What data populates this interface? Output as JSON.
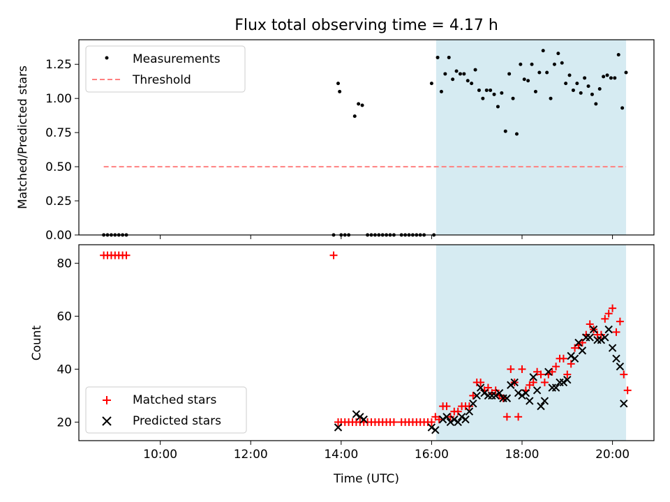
{
  "figure": {
    "title": "Flux total observing time = 4.17 h"
  },
  "chart_data": [
    {
      "type": "scatter",
      "panel": "top",
      "title": "Flux total observing time = 4.17 h",
      "xlabel": "",
      "ylabel": "Matched/Predicted stars",
      "xlim": [
        "08:12",
        "20:55"
      ],
      "ylim": [
        0,
        1.43
      ],
      "yticks": [
        0.0,
        0.25,
        0.5,
        0.75,
        1.0,
        1.25
      ],
      "ytick_labels": [
        "0.00",
        "0.25",
        "0.50",
        "0.75",
        "1.00",
        "1.25"
      ],
      "legend_position": "top-left",
      "shaded_interval": {
        "start": "16:06",
        "end": "20:18",
        "color": "#add8e6"
      },
      "series": [
        {
          "name": "Measurements",
          "marker": "dot",
          "color": "#000000",
          "points": [
            [
              "08:45",
              0
            ],
            [
              "08:50",
              0
            ],
            [
              "08:55",
              0
            ],
            [
              "09:00",
              0
            ],
            [
              "09:05",
              0
            ],
            [
              "09:10",
              0
            ],
            [
              "09:15",
              0
            ],
            [
              "13:50",
              0
            ],
            [
              "13:56",
              1.11
            ],
            [
              "13:58",
              1.05
            ],
            [
              "14:00",
              0
            ],
            [
              "14:05",
              0
            ],
            [
              "14:10",
              0
            ],
            [
              "14:18",
              0.87
            ],
            [
              "14:23",
              0.96
            ],
            [
              "14:28",
              0.95
            ],
            [
              "14:35",
              0
            ],
            [
              "14:40",
              0
            ],
            [
              "14:45",
              0
            ],
            [
              "14:50",
              0
            ],
            [
              "14:55",
              0
            ],
            [
              "15:00",
              0
            ],
            [
              "15:05",
              0
            ],
            [
              "15:10",
              0
            ],
            [
              "15:20",
              0
            ],
            [
              "15:25",
              0
            ],
            [
              "15:30",
              0
            ],
            [
              "15:35",
              0
            ],
            [
              "15:40",
              0
            ],
            [
              "15:45",
              0
            ],
            [
              "15:50",
              0
            ],
            [
              "16:00",
              1.11
            ],
            [
              "16:03",
              0
            ],
            [
              "16:08",
              1.3
            ],
            [
              "16:13",
              1.05
            ],
            [
              "16:18",
              1.18
            ],
            [
              "16:23",
              1.3
            ],
            [
              "16:28",
              1.14
            ],
            [
              "16:33",
              1.2
            ],
            [
              "16:38",
              1.18
            ],
            [
              "16:43",
              1.18
            ],
            [
              "16:48",
              1.13
            ],
            [
              "16:53",
              1.11
            ],
            [
              "16:58",
              1.21
            ],
            [
              "17:03",
              1.06
            ],
            [
              "17:08",
              1.0
            ],
            [
              "17:13",
              1.06
            ],
            [
              "17:18",
              1.06
            ],
            [
              "17:23",
              1.03
            ],
            [
              "17:28",
              0.94
            ],
            [
              "17:33",
              1.04
            ],
            [
              "17:38",
              0.76
            ],
            [
              "17:43",
              1.18
            ],
            [
              "17:48",
              1.0
            ],
            [
              "17:53",
              0.74
            ],
            [
              "17:58",
              1.25
            ],
            [
              "18:03",
              1.14
            ],
            [
              "18:08",
              1.13
            ],
            [
              "18:13",
              1.25
            ],
            [
              "18:18",
              1.05
            ],
            [
              "18:23",
              1.19
            ],
            [
              "18:28",
              1.35
            ],
            [
              "18:33",
              1.19
            ],
            [
              "18:38",
              1.0
            ],
            [
              "18:43",
              1.25
            ],
            [
              "18:48",
              1.33
            ],
            [
              "18:53",
              1.26
            ],
            [
              "18:58",
              1.11
            ],
            [
              "19:03",
              1.17
            ],
            [
              "19:08",
              1.06
            ],
            [
              "19:13",
              1.11
            ],
            [
              "19:18",
              1.04
            ],
            [
              "19:23",
              1.15
            ],
            [
              "19:28",
              1.09
            ],
            [
              "19:33",
              1.03
            ],
            [
              "19:38",
              0.96
            ],
            [
              "19:43",
              1.07
            ],
            [
              "19:48",
              1.16
            ],
            [
              "19:53",
              1.17
            ],
            [
              "19:58",
              1.15
            ],
            [
              "20:03",
              1.15
            ],
            [
              "20:08",
              1.32
            ],
            [
              "20:13",
              0.93
            ],
            [
              "20:18",
              1.19
            ]
          ]
        },
        {
          "name": "Threshold",
          "marker": "dashed-line",
          "color": "#ff8080",
          "points": [
            [
              "08:45",
              0.5
            ],
            [
              "20:18",
              0.5
            ]
          ]
        }
      ]
    },
    {
      "type": "scatter",
      "panel": "bottom",
      "xlabel": "Time (UTC)",
      "ylabel": "Count",
      "xlim": [
        "08:12",
        "20:55"
      ],
      "ylim": [
        13,
        87
      ],
      "xticks": [
        "10:00",
        "12:00",
        "14:00",
        "16:00",
        "18:00",
        "20:00"
      ],
      "yticks": [
        20,
        40,
        60,
        80
      ],
      "ytick_labels": [
        "20",
        "40",
        "60",
        "80"
      ],
      "legend_position": "bottom-left",
      "shaded_interval": {
        "start": "16:06",
        "end": "20:18",
        "color": "#add8e6"
      },
      "series": [
        {
          "name": "Matched stars",
          "marker": "plus",
          "color": "#ff0000",
          "points": [
            [
              "08:45",
              83
            ],
            [
              "08:50",
              83
            ],
            [
              "08:55",
              83
            ],
            [
              "09:00",
              83
            ],
            [
              "09:05",
              83
            ],
            [
              "09:10",
              83
            ],
            [
              "09:15",
              83
            ],
            [
              "13:50",
              83
            ],
            [
              "13:56",
              20
            ],
            [
              "14:00",
              20
            ],
            [
              "14:05",
              20
            ],
            [
              "14:10",
              20
            ],
            [
              "14:15",
              20
            ],
            [
              "14:20",
              20
            ],
            [
              "14:25",
              20
            ],
            [
              "14:30",
              20
            ],
            [
              "14:35",
              20
            ],
            [
              "14:40",
              20
            ],
            [
              "14:45",
              20
            ],
            [
              "14:50",
              20
            ],
            [
              "14:55",
              20
            ],
            [
              "15:00",
              20
            ],
            [
              "15:05",
              20
            ],
            [
              "15:10",
              20
            ],
            [
              "15:20",
              20
            ],
            [
              "15:25",
              20
            ],
            [
              "15:30",
              20
            ],
            [
              "15:35",
              20
            ],
            [
              "15:40",
              20
            ],
            [
              "15:45",
              20
            ],
            [
              "15:50",
              20
            ],
            [
              "15:55",
              20
            ],
            [
              "16:00",
              20
            ],
            [
              "16:05",
              22
            ],
            [
              "16:10",
              21
            ],
            [
              "16:15",
              26
            ],
            [
              "16:20",
              26
            ],
            [
              "16:25",
              22
            ],
            [
              "16:30",
              24
            ],
            [
              "16:35",
              24
            ],
            [
              "16:40",
              26
            ],
            [
              "16:45",
              26
            ],
            [
              "16:50",
              26
            ],
            [
              "16:55",
              30
            ],
            [
              "17:00",
              35
            ],
            [
              "17:05",
              35
            ],
            [
              "17:10",
              32
            ],
            [
              "17:15",
              33
            ],
            [
              "17:20",
              31
            ],
            [
              "17:25",
              32
            ],
            [
              "17:30",
              30
            ],
            [
              "17:35",
              29
            ],
            [
              "17:40",
              22
            ],
            [
              "17:45",
              40
            ],
            [
              "17:50",
              35
            ],
            [
              "17:55",
              22
            ],
            [
              "18:00",
              40
            ],
            [
              "18:05",
              32
            ],
            [
              "18:10",
              34
            ],
            [
              "18:15",
              35
            ],
            [
              "18:20",
              39
            ],
            [
              "18:25",
              38
            ],
            [
              "18:30",
              35
            ],
            [
              "18:35",
              38
            ],
            [
              "18:40",
              39
            ],
            [
              "18:45",
              41
            ],
            [
              "18:50",
              44
            ],
            [
              "18:55",
              44
            ],
            [
              "19:00",
              38
            ],
            [
              "19:05",
              42
            ],
            [
              "19:10",
              48
            ],
            [
              "19:15",
              49
            ],
            [
              "19:20",
              50
            ],
            [
              "19:25",
              53
            ],
            [
              "19:30",
              57
            ],
            [
              "19:35",
              55
            ],
            [
              "19:40",
              53
            ],
            [
              "19:45",
              53
            ],
            [
              "19:50",
              59
            ],
            [
              "19:55",
              61
            ],
            [
              "20:00",
              63
            ],
            [
              "20:05",
              54
            ],
            [
              "20:10",
              58
            ],
            [
              "20:15",
              38
            ],
            [
              "20:20",
              32
            ]
          ]
        },
        {
          "name": "Predicted stars",
          "marker": "x",
          "color": "#000000",
          "points": [
            [
              "13:56",
              18
            ],
            [
              "14:20",
              23
            ],
            [
              "14:25",
              22
            ],
            [
              "14:30",
              21
            ],
            [
              "16:00",
              18
            ],
            [
              "16:05",
              17
            ],
            [
              "16:15",
              21
            ],
            [
              "16:20",
              22
            ],
            [
              "16:25",
              20
            ],
            [
              "16:30",
              21
            ],
            [
              "16:35",
              20
            ],
            [
              "16:40",
              22
            ],
            [
              "16:45",
              21
            ],
            [
              "16:50",
              24
            ],
            [
              "16:55",
              27
            ],
            [
              "17:00",
              30
            ],
            [
              "17:05",
              33
            ],
            [
              "17:10",
              31
            ],
            [
              "17:15",
              30
            ],
            [
              "17:20",
              30
            ],
            [
              "17:25",
              30
            ],
            [
              "17:30",
              31
            ],
            [
              "17:35",
              29
            ],
            [
              "17:40",
              29
            ],
            [
              "17:45",
              34
            ],
            [
              "17:50",
              35
            ],
            [
              "17:55",
              31
            ],
            [
              "18:00",
              30
            ],
            [
              "18:05",
              31
            ],
            [
              "18:10",
              28
            ],
            [
              "18:15",
              37
            ],
            [
              "18:20",
              32
            ],
            [
              "18:25",
              26
            ],
            [
              "18:30",
              28
            ],
            [
              "18:35",
              39
            ],
            [
              "18:40",
              33
            ],
            [
              "18:45",
              33
            ],
            [
              "18:50",
              35
            ],
            [
              "18:55",
              35
            ],
            [
              "19:00",
              36
            ],
            [
              "19:05",
              45
            ],
            [
              "19:10",
              44
            ],
            [
              "19:15",
              50
            ],
            [
              "19:20",
              47
            ],
            [
              "19:25",
              52
            ],
            [
              "19:30",
              52
            ],
            [
              "19:35",
              55
            ],
            [
              "19:40",
              51
            ],
            [
              "19:45",
              51
            ],
            [
              "19:50",
              52
            ],
            [
              "19:55",
              55
            ],
            [
              "20:00",
              48
            ],
            [
              "20:05",
              44
            ],
            [
              "20:10",
              41
            ],
            [
              "20:15",
              27
            ]
          ]
        }
      ]
    }
  ]
}
